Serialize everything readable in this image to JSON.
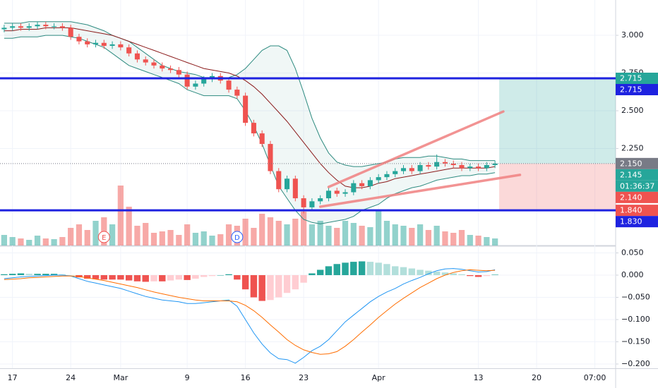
{
  "chart_data": [
    {
      "type": "candlestick",
      "categories": [
        null,
        "17",
        null,
        null,
        null,
        null,
        null,
        null,
        "24",
        null,
        null,
        null,
        null,
        null,
        "Mar",
        null,
        null,
        null,
        null,
        null,
        null,
        null,
        "9",
        null,
        null,
        null,
        null,
        null,
        null,
        "16",
        null,
        null,
        null,
        null,
        null,
        null,
        "23",
        null,
        null,
        null,
        null,
        null,
        null,
        null,
        null,
        "Apr",
        null,
        null,
        null,
        null,
        null,
        null,
        null,
        null,
        null,
        null,
        null,
        "13",
        null,
        null,
        null,
        null,
        null,
        null,
        "20",
        null,
        null,
        null,
        null,
        null,
        null,
        "07:00",
        null,
        null
      ],
      "open": [
        3.04,
        3.05,
        3.06,
        3.05,
        3.06,
        3.07,
        3.06,
        3.06,
        3.05,
        2.99,
        2.96,
        2.94,
        2.95,
        2.93,
        2.94,
        2.92,
        2.88,
        2.84,
        2.82,
        2.8,
        2.78,
        2.77,
        2.74,
        2.66,
        2.68,
        2.71,
        2.73,
        2.7,
        2.64,
        2.6,
        2.42,
        2.35,
        2.28,
        2.1,
        1.98,
        2.05,
        1.92,
        1.86,
        1.9,
        1.92,
        1.97,
        1.95,
        1.96,
        2.02,
        2.0,
        2.04,
        2.06,
        2.08,
        2.1,
        2.12,
        2.1,
        2.14,
        2.13,
        2.16,
        2.15,
        2.14,
        2.12,
        2.13,
        2.12,
        2.14,
        null,
        null,
        null,
        null,
        null,
        null,
        null,
        null,
        null,
        null,
        null,
        null,
        null,
        null
      ],
      "high": [
        3.07,
        3.08,
        3.08,
        3.08,
        3.09,
        3.09,
        3.08,
        3.08,
        3.07,
        3.01,
        2.98,
        2.97,
        2.97,
        2.96,
        2.96,
        2.94,
        2.9,
        2.86,
        2.84,
        2.82,
        2.8,
        2.79,
        2.76,
        2.7,
        2.73,
        2.75,
        2.75,
        2.72,
        2.66,
        2.62,
        2.44,
        2.37,
        2.3,
        2.12,
        2.07,
        2.07,
        1.94,
        1.92,
        1.94,
        1.99,
        1.99,
        1.98,
        2.04,
        2.04,
        2.06,
        2.08,
        2.1,
        2.12,
        2.14,
        2.14,
        2.16,
        2.16,
        2.21,
        2.18,
        2.17,
        2.16,
        2.15,
        2.15,
        2.16,
        2.17,
        null,
        null,
        null,
        null,
        null,
        null,
        null,
        null,
        null,
        null,
        null,
        null,
        null,
        null
      ],
      "low": [
        3.02,
        3.03,
        3.03,
        3.03,
        3.04,
        3.04,
        3.04,
        3.03,
        2.97,
        2.94,
        2.92,
        2.92,
        2.91,
        2.91,
        2.9,
        2.86,
        2.82,
        2.8,
        2.78,
        2.76,
        2.75,
        2.72,
        2.64,
        2.64,
        2.66,
        2.69,
        2.68,
        2.62,
        2.58,
        2.4,
        2.33,
        2.26,
        2.08,
        1.96,
        1.96,
        1.9,
        1.82,
        1.84,
        1.88,
        1.9,
        1.93,
        1.93,
        1.94,
        1.98,
        1.98,
        2.02,
        2.04,
        2.06,
        2.08,
        2.08,
        2.08,
        2.11,
        2.11,
        2.13,
        2.12,
        2.1,
        2.1,
        2.1,
        2.1,
        2.12,
        null,
        null,
        null,
        null,
        null,
        null,
        null,
        null,
        null,
        null,
        null,
        null,
        null,
        null
      ],
      "close": [
        3.05,
        3.06,
        3.05,
        3.06,
        3.07,
        3.06,
        3.06,
        3.05,
        2.99,
        2.96,
        2.94,
        2.95,
        2.93,
        2.94,
        2.92,
        2.88,
        2.84,
        2.82,
        2.8,
        2.78,
        2.77,
        2.74,
        2.66,
        2.68,
        2.71,
        2.73,
        2.7,
        2.64,
        2.6,
        2.42,
        2.35,
        2.28,
        2.1,
        1.98,
        2.05,
        1.92,
        1.86,
        1.9,
        1.92,
        1.97,
        1.95,
        1.96,
        2.02,
        2.0,
        2.04,
        2.06,
        2.08,
        2.1,
        2.12,
        2.1,
        2.14,
        2.13,
        2.16,
        2.15,
        2.14,
        2.12,
        2.13,
        2.12,
        2.14,
        2.15,
        null,
        null,
        null,
        null,
        null,
        null,
        null,
        null,
        null,
        null,
        null,
        null,
        null,
        null
      ],
      "volume": [
        15,
        12,
        10,
        8,
        14,
        10,
        9,
        12,
        25,
        30,
        22,
        35,
        40,
        30,
        85,
        55,
        28,
        32,
        18,
        20,
        22,
        15,
        30,
        18,
        20,
        14,
        16,
        30,
        28,
        38,
        25,
        45,
        40,
        35,
        30,
        38,
        48,
        30,
        35,
        28,
        25,
        35,
        32,
        28,
        26,
        50,
        35,
        30,
        28,
        25,
        30,
        22,
        28,
        20,
        18,
        22,
        15,
        14,
        12,
        10,
        null,
        null,
        null,
        null,
        null,
        null,
        null,
        null,
        null,
        null,
        null,
        null,
        null,
        null
      ],
      "colors": {
        "up": "#26a69a",
        "down": "#ef5350",
        "band": "#2e8b80",
        "basis": "#8b1a1a"
      },
      "bollinger": {
        "upper": [
          3.08,
          3.08,
          3.08,
          3.09,
          3.09,
          3.09,
          3.09,
          3.09,
          3.09,
          3.08,
          3.07,
          3.05,
          3.03,
          3.0,
          2.98,
          2.96,
          2.92,
          2.88,
          2.84,
          2.8,
          2.78,
          2.76,
          2.75,
          2.74,
          2.72,
          2.72,
          2.71,
          2.72,
          2.74,
          2.78,
          2.84,
          2.9,
          2.93,
          2.93,
          2.9,
          2.78,
          2.62,
          2.45,
          2.32,
          2.22,
          2.16,
          2.14,
          2.13,
          2.13,
          2.14,
          2.15,
          2.16,
          2.18,
          2.19,
          2.19,
          2.19,
          2.2,
          2.2,
          2.19,
          2.18,
          2.18,
          2.17,
          2.17,
          2.17,
          2.17,
          null,
          null,
          null,
          null,
          null,
          null,
          null,
          null,
          null,
          null,
          null,
          null,
          null,
          null
        ],
        "basis": [
          3.03,
          3.03,
          3.04,
          3.04,
          3.04,
          3.05,
          3.05,
          3.05,
          3.05,
          3.04,
          3.03,
          3.02,
          3.01,
          3.0,
          2.98,
          2.96,
          2.94,
          2.92,
          2.9,
          2.88,
          2.86,
          2.84,
          2.82,
          2.8,
          2.78,
          2.77,
          2.76,
          2.75,
          2.73,
          2.7,
          2.66,
          2.61,
          2.55,
          2.49,
          2.43,
          2.36,
          2.29,
          2.22,
          2.15,
          2.09,
          2.04,
          2.0,
          1.99,
          1.99,
          2.0,
          2.02,
          2.03,
          2.05,
          2.06,
          2.07,
          2.08,
          2.09,
          2.1,
          2.11,
          2.12,
          2.12,
          2.12,
          2.12,
          2.12,
          2.13,
          null,
          null,
          null,
          null,
          null,
          null,
          null,
          null,
          null,
          null,
          null,
          null,
          null,
          null
        ],
        "lower": [
          2.98,
          2.98,
          2.99,
          2.99,
          2.99,
          3.0,
          3.0,
          3.0,
          2.99,
          2.98,
          2.96,
          2.94,
          2.92,
          2.88,
          2.84,
          2.8,
          2.78,
          2.76,
          2.74,
          2.72,
          2.7,
          2.68,
          2.64,
          2.62,
          2.6,
          2.6,
          2.6,
          2.6,
          2.58,
          2.5,
          2.4,
          2.28,
          2.14,
          2.0,
          1.92,
          1.84,
          1.78,
          1.76,
          1.75,
          1.76,
          1.77,
          1.78,
          1.8,
          1.84,
          1.86,
          1.88,
          1.92,
          1.95,
          1.97,
          1.99,
          2.0,
          2.02,
          2.04,
          2.05,
          2.06,
          2.07,
          2.07,
          2.08,
          2.08,
          2.09,
          null,
          null,
          null,
          null,
          null,
          null,
          null,
          null,
          null,
          null,
          null,
          null,
          null,
          null
        ]
      },
      "ylim": [
        1.607,
        3.234
      ],
      "yticks": [
        {
          "value": 3.0,
          "label": "3.000"
        },
        {
          "value": 2.75,
          "label": "2.750"
        },
        {
          "value": 2.5,
          "label": "2.500"
        },
        {
          "value": 2.25,
          "label": "2.250"
        }
      ],
      "grid": true,
      "price_lines": [
        {
          "value": 2.715,
          "color": "#1e22e0"
        },
        {
          "value": 1.84,
          "color": "#1e22e0"
        }
      ],
      "price_labels": [
        {
          "value": 2.715,
          "label": "2.715",
          "color": "#26a69a"
        },
        {
          "value": 2.715,
          "label": "2.715",
          "color": "#1e22e0"
        },
        {
          "value": 2.15,
          "label": "2.150",
          "color": "#787b86"
        },
        {
          "value": 2.145,
          "label": "2.145",
          "color": "#26a69a"
        },
        {
          "value": 2.14,
          "label": "2.140",
          "color": "#ef5350"
        },
        {
          "value": 1.84,
          "label": "1.840",
          "color": "#ef5350"
        },
        {
          "value": 1.83,
          "label": "1.830",
          "color": "#1e22e0"
        }
      ],
      "countdown": {
        "label": "01:36:37",
        "color": "#26a69a"
      },
      "trend_lines": [
        {
          "from": [
            39,
            1.995
          ],
          "to": [
            60,
            2.495
          ],
          "color": "#f08080"
        },
        {
          "from": [
            38,
            1.864
          ],
          "to": [
            62,
            2.075
          ],
          "color": "#f08080"
        }
      ],
      "position": {
        "start": 60,
        "entry": 2.15,
        "target": 2.715,
        "stop": 1.84
      },
      "events": [
        {
          "label": "E",
          "index": 12,
          "color": "#ef5350"
        },
        {
          "label": "D",
          "index": 28,
          "color": "#2962ff"
        }
      ]
    },
    {
      "type": "macd",
      "macd": [
        -0.008,
        -0.006,
        -0.004,
        -0.003,
        -0.002,
        -0.001,
        0.0,
        0.0,
        -0.002,
        -0.008,
        -0.014,
        -0.018,
        -0.022,
        -0.026,
        -0.03,
        -0.036,
        -0.042,
        -0.048,
        -0.052,
        -0.056,
        -0.058,
        -0.06,
        -0.064,
        -0.064,
        -0.062,
        -0.06,
        -0.058,
        -0.056,
        -0.07,
        -0.1,
        -0.13,
        -0.155,
        -0.175,
        -0.188,
        -0.19,
        -0.198,
        -0.185,
        -0.17,
        -0.16,
        -0.145,
        -0.125,
        -0.105,
        -0.09,
        -0.075,
        -0.06,
        -0.048,
        -0.038,
        -0.03,
        -0.02,
        -0.012,
        -0.005,
        0.003,
        0.01,
        0.014,
        0.015,
        0.013,
        0.01,
        0.007,
        0.008,
        0.012,
        null,
        null,
        null,
        null,
        null,
        null,
        null,
        null,
        null,
        null,
        null,
        null,
        null,
        null
      ],
      "signal": [
        -0.01,
        -0.009,
        -0.008,
        -0.006,
        -0.005,
        -0.004,
        -0.003,
        -0.002,
        -0.002,
        -0.003,
        -0.006,
        -0.009,
        -0.012,
        -0.016,
        -0.02,
        -0.024,
        -0.028,
        -0.033,
        -0.038,
        -0.042,
        -0.046,
        -0.05,
        -0.053,
        -0.056,
        -0.058,
        -0.058,
        -0.058,
        -0.058,
        -0.06,
        -0.068,
        -0.08,
        -0.095,
        -0.112,
        -0.128,
        -0.145,
        -0.158,
        -0.168,
        -0.174,
        -0.178,
        -0.177,
        -0.172,
        -0.16,
        -0.145,
        -0.128,
        -0.112,
        -0.095,
        -0.08,
        -0.065,
        -0.052,
        -0.04,
        -0.028,
        -0.018,
        -0.008,
        0.0,
        0.006,
        0.01,
        0.012,
        0.011,
        0.01,
        0.011,
        null,
        null,
        null,
        null,
        null,
        null,
        null,
        null,
        null,
        null,
        null,
        null,
        null,
        null
      ],
      "histogram": [
        0.002,
        0.003,
        0.004,
        0.003,
        0.003,
        0.003,
        0.003,
        0.002,
        0.0,
        -0.005,
        -0.008,
        -0.009,
        -0.01,
        -0.01,
        -0.01,
        -0.012,
        -0.014,
        -0.015,
        -0.014,
        -0.014,
        -0.012,
        -0.01,
        -0.011,
        -0.008,
        -0.004,
        -0.002,
        0.0,
        0.002,
        -0.01,
        -0.032,
        -0.05,
        -0.058,
        -0.056,
        -0.05,
        -0.04,
        -0.032,
        -0.017,
        0.004,
        0.012,
        0.02,
        0.025,
        0.028,
        0.03,
        0.031,
        0.03,
        0.028,
        0.025,
        0.02,
        0.018,
        0.015,
        0.012,
        0.01,
        0.008,
        0.006,
        0.004,
        0.002,
        -0.002,
        -0.004,
        -0.002,
        0.001,
        null,
        null,
        null,
        null,
        null,
        null,
        null,
        null,
        null,
        null,
        null,
        null,
        null,
        null
      ],
      "colors": {
        "macd": "#2196f3",
        "signal": "#ff6d00",
        "up": "#26a69a",
        "up_fading": "#b2dfdb",
        "down": "#ef5350",
        "down_fading": "#ffcdd2"
      },
      "ylim": [
        -0.2095,
        0.0635
      ],
      "yticks": [
        {
          "value": 0.05,
          "label": "0.050"
        },
        {
          "value": 0.0,
          "label": "0.000"
        },
        {
          "value": -0.05,
          "label": "−0.050"
        },
        {
          "value": -0.1,
          "label": "−0.100"
        },
        {
          "value": -0.15,
          "label": "−0.150"
        },
        {
          "value": -0.2,
          "label": "−0.200"
        }
      ],
      "grid": true
    }
  ]
}
